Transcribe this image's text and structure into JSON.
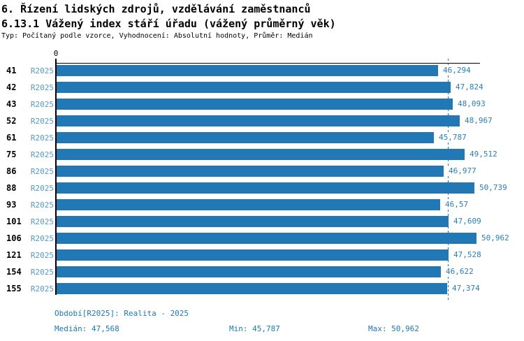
{
  "header": {
    "title_line1": "6. Řízení lidských zdrojů, vzdělávání zaměstnanců",
    "title_line2": "6.13.1 Vážený index stáří úřadu (vážený průměrný věk)",
    "subtitle": "Typ: Počítaný podle vzorce, Vyhodnocení: Absolutní hodnoty, Průměr: Medián"
  },
  "chart_data": {
    "type": "bar",
    "orientation": "horizontal",
    "title": "6.13.1 Vážený index stáří úřadu (vážený průměrný věk)",
    "x_zero_label": "0",
    "xlim": [
      0,
      50.962
    ],
    "grid": false,
    "series_label": "R2025",
    "categories": [
      "41",
      "42",
      "43",
      "52",
      "61",
      "75",
      "86",
      "88",
      "93",
      "101",
      "106",
      "121",
      "154",
      "155"
    ],
    "rows": [
      {
        "org": "41",
        "period": "R2025",
        "value": 46.294,
        "value_label": "46,294"
      },
      {
        "org": "42",
        "period": "R2025",
        "value": 47.824,
        "value_label": "47,824"
      },
      {
        "org": "43",
        "period": "R2025",
        "value": 48.093,
        "value_label": "48,093"
      },
      {
        "org": "52",
        "period": "R2025",
        "value": 48.967,
        "value_label": "48,967"
      },
      {
        "org": "61",
        "period": "R2025",
        "value": 45.787,
        "value_label": "45,787"
      },
      {
        "org": "75",
        "period": "R2025",
        "value": 49.512,
        "value_label": "49,512"
      },
      {
        "org": "86",
        "period": "R2025",
        "value": 46.977,
        "value_label": "46,977"
      },
      {
        "org": "88",
        "period": "R2025",
        "value": 50.739,
        "value_label": "50,739"
      },
      {
        "org": "93",
        "period": "R2025",
        "value": 46.57,
        "value_label": "46,57"
      },
      {
        "org": "101",
        "period": "R2025",
        "value": 47.609,
        "value_label": "47,609"
      },
      {
        "org": "106",
        "period": "R2025",
        "value": 50.962,
        "value_label": "50,962"
      },
      {
        "org": "121",
        "period": "R2025",
        "value": 47.528,
        "value_label": "47,528"
      },
      {
        "org": "154",
        "period": "R2025",
        "value": 46.622,
        "value_label": "46,622"
      },
      {
        "org": "155",
        "period": "R2025",
        "value": 47.374,
        "value_label": "47,374"
      }
    ],
    "median": {
      "value": 47.568,
      "label": "47,568"
    },
    "min": {
      "value": 45.787,
      "label": "45,787"
    },
    "max": {
      "value": 50.962,
      "label": "50,962"
    }
  },
  "footer": {
    "period": "Období[R2025]: Realita - 2025",
    "median": "Medián: 47,568",
    "min": "Min: 45,787",
    "max": "Max: 50,962"
  },
  "colors": {
    "bar": "#2278b5",
    "value_text": "#2b7fb8",
    "series_text": "#4f9ac9",
    "median_line": "#2278b5",
    "footer_text": "#1f77b4",
    "axis": "#000000",
    "title_text": "#000000",
    "background": "#ffffff"
  }
}
